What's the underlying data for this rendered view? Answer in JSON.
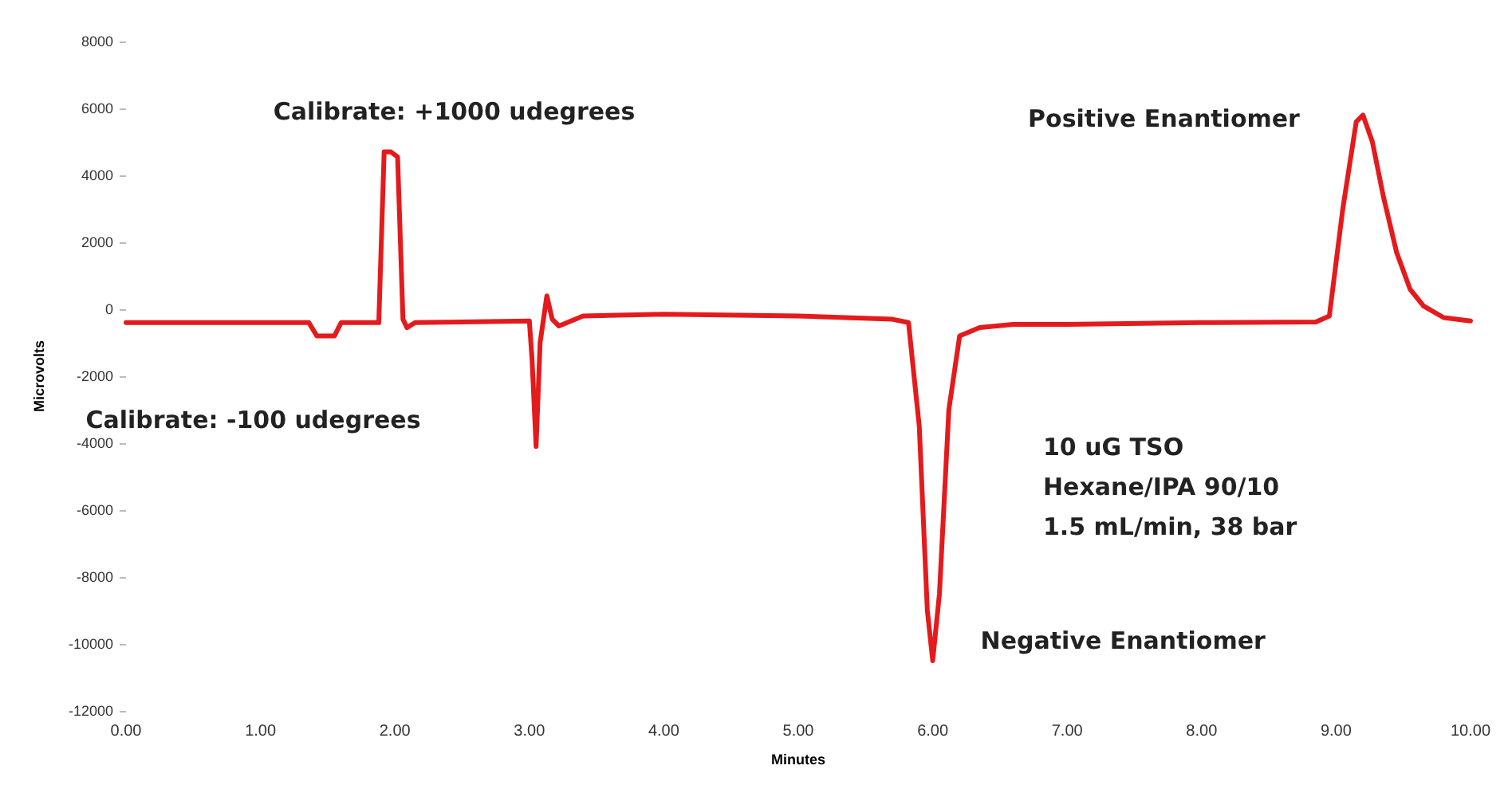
{
  "chart_data": {
    "type": "line",
    "xlabel": "Minutes",
    "ylabel": "Microvolts",
    "x": [
      0,
      0.5,
      1,
      1.36,
      1.42,
      1.55,
      1.6,
      1.88,
      1.92,
      1.97,
      2.02,
      2.06,
      2.09,
      2.15,
      2.5,
      3.0,
      3.02,
      3.05,
      3.08,
      3.13,
      3.17,
      3.22,
      3.4,
      4.0,
      5.0,
      5.7,
      5.82,
      5.9,
      5.96,
      6.0,
      6.05,
      6.12,
      6.2,
      6.35,
      6.6,
      7.0,
      8.0,
      8.85,
      8.95,
      9.05,
      9.15,
      9.2,
      9.27,
      9.35,
      9.45,
      9.55,
      9.65,
      9.8,
      10
    ],
    "values": [
      -400,
      -400,
      -400,
      -400,
      -800,
      -800,
      -400,
      -400,
      4700,
      4700,
      4550,
      -300,
      -550,
      -400,
      -380,
      -350,
      -1500,
      -4100,
      -1000,
      400,
      -300,
      -500,
      -200,
      -150,
      -200,
      -300,
      -400,
      -3500,
      -9000,
      -10500,
      -8500,
      -3000,
      -800,
      -550,
      -450,
      -450,
      -400,
      -380,
      -200,
      3000,
      5600,
      5800,
      5000,
      3400,
      1700,
      600,
      100,
      -250,
      -350
    ],
    "color": "#e41a1c",
    "marker": "none",
    "line_style": "solid",
    "grid": false,
    "xlim": [
      0,
      10
    ],
    "xticks": [
      {
        "value": 0,
        "label": "0.00"
      },
      {
        "value": 1,
        "label": "1.00"
      },
      {
        "value": 2,
        "label": "2.00"
      },
      {
        "value": 3,
        "label": "3.00"
      },
      {
        "value": 4,
        "label": "4.00"
      },
      {
        "value": 5,
        "label": "5.00"
      },
      {
        "value": 6,
        "label": "6.00"
      },
      {
        "value": 7,
        "label": "7.00"
      },
      {
        "value": 8,
        "label": "8.00"
      },
      {
        "value": 9,
        "label": "9.00"
      },
      {
        "value": 10,
        "label": "10.00"
      }
    ],
    "ylim": [
      -12000,
      8000
    ],
    "yticks": [
      -12000,
      -10000,
      -8000,
      -6000,
      -4000,
      -2000,
      0,
      2000,
      4000,
      6000,
      8000
    ],
    "annotations": [
      {
        "text": "Calibrate: +1000 udegrees",
        "x": 1.95,
        "y": 4700
      },
      {
        "text": "Calibrate: -100 udegrees",
        "x": 1.48,
        "y": -800
      },
      {
        "text": "Positive Enantiomer",
        "x": 9.2,
        "y": 5800
      },
      {
        "text": "Negative Enantiomer",
        "x": 6.0,
        "y": -10500
      },
      "10 uG TSO\nHexane/IPA 90/10\n1.5 mL/min, 38 bar"
    ]
  }
}
